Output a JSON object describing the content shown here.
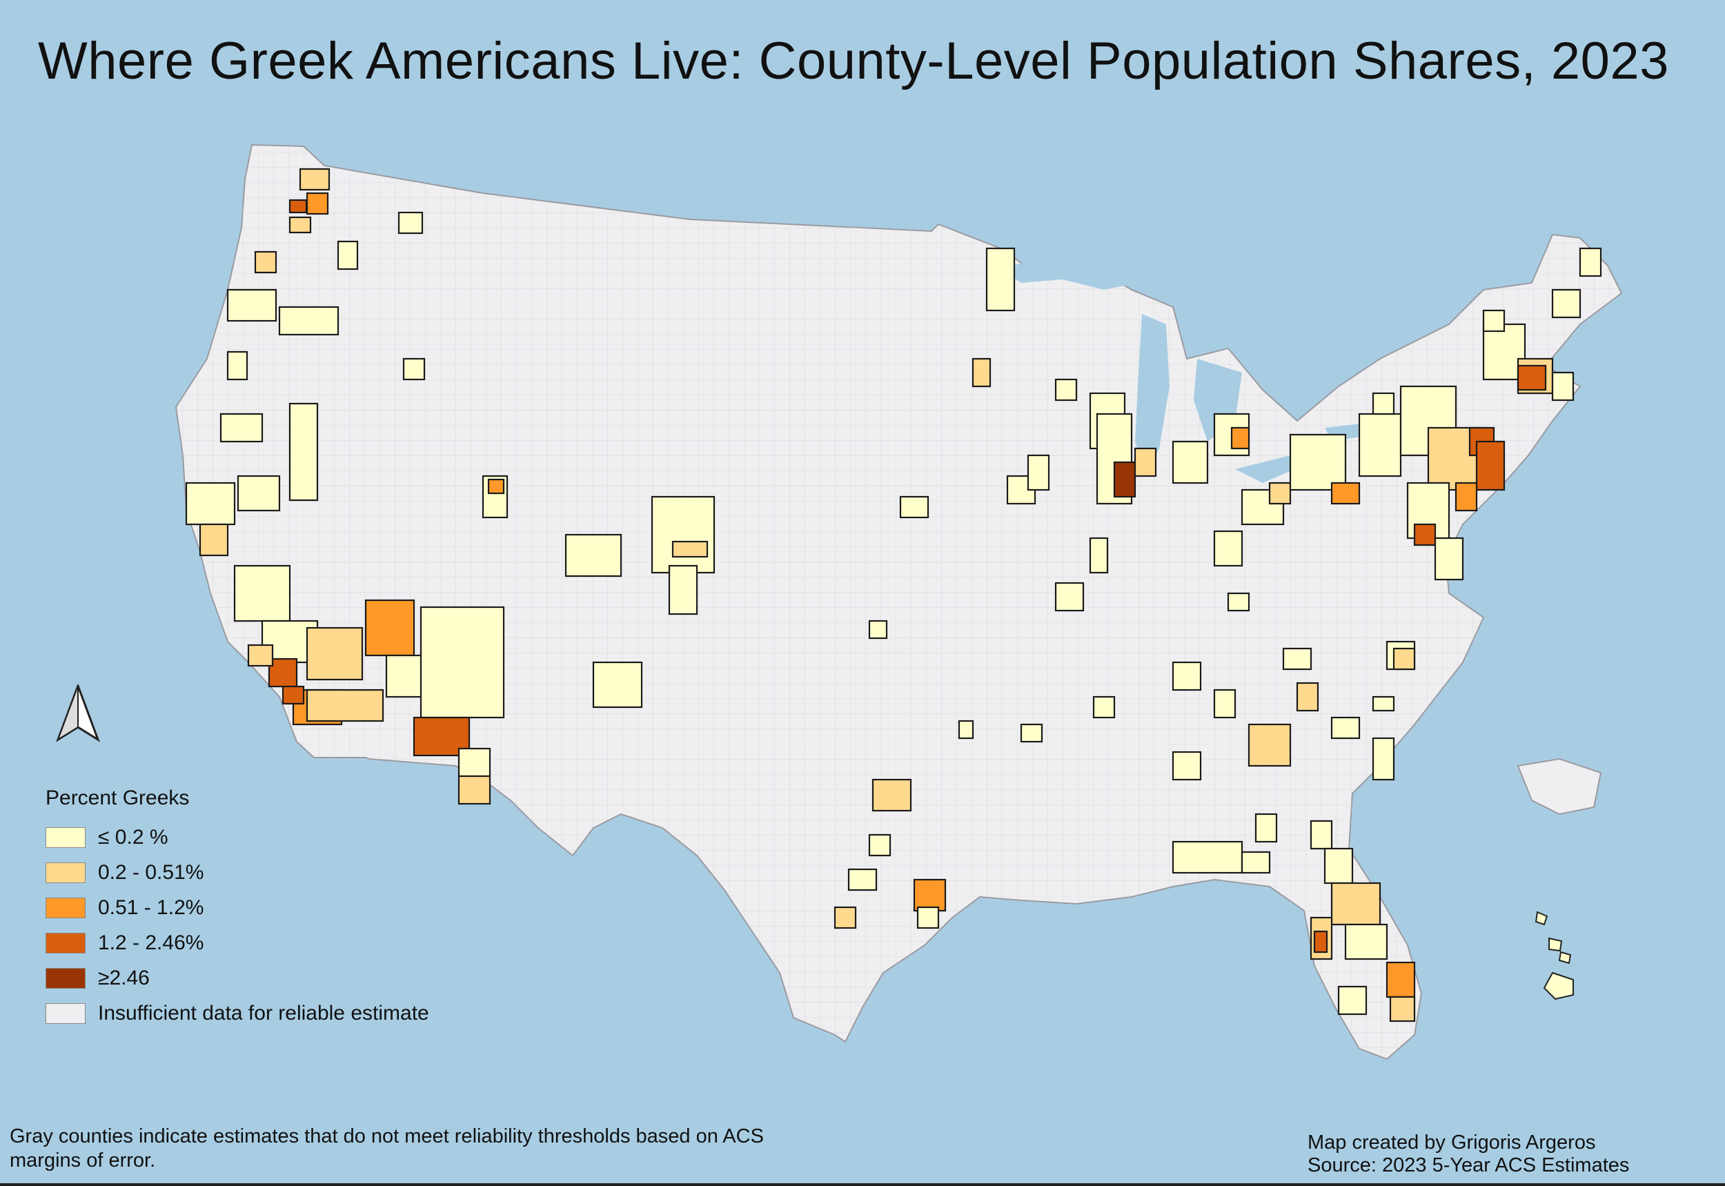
{
  "title": "Where Greek Americans Live: County-Level Population Shares, 2023",
  "legend": {
    "title": "Percent Greeks",
    "items": [
      {
        "label": "≤ 0.2 %",
        "color": "#ffffcc"
      },
      {
        "label": "0.2 - 0.51%",
        "color": "#fed98e"
      },
      {
        "label": "0.51 - 1.2%",
        "color": "#fe9929"
      },
      {
        "label": "1.2 - 2.46%",
        "color": "#d95f0e"
      },
      {
        "label": "≥2.46",
        "color": "#993404"
      },
      {
        "label": "Insufficient data for reliable estimate",
        "color": "#efeff1"
      }
    ]
  },
  "footnote": "Gray counties indicate estimates that do not meet reliability thresholds based on ACS margins of error.",
  "credits": {
    "author": "Map created by Grigoris Argeros",
    "source": "Source: 2023 5-Year ACS Estimates"
  },
  "colors": {
    "ocean": "#a8cde3",
    "land": "#efeff1"
  },
  "icons": {
    "north_arrow": "north-arrow-icon"
  }
}
